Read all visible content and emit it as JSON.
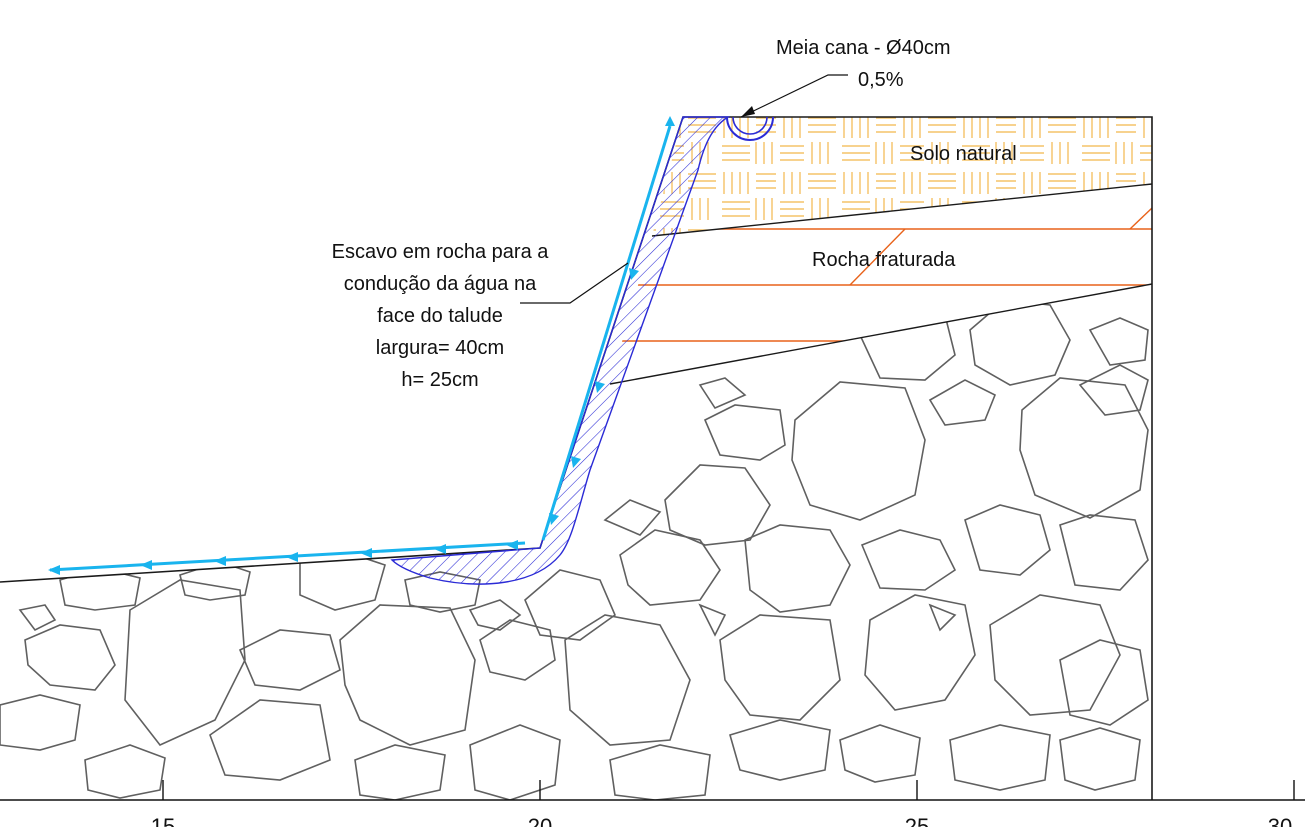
{
  "labels": {
    "drain_title": "Meia cana - Ø40cm",
    "drain_slope": "0,5%",
    "layer_soil": "Solo natural",
    "layer_fractured": "Rocha fraturada",
    "excavation_lines": [
      "Escavo em rocha para a",
      "condução da água na",
      "face do talude",
      "largura= 40cm",
      "h= 25cm"
    ]
  },
  "axis": {
    "ticks": [
      "15",
      "20",
      "25",
      "30"
    ]
  },
  "colors": {
    "outline": "#1a1a1a",
    "soil_hatch": "#f2b84b",
    "fracture_lines": "#e8621a",
    "rock_blocks": "#606060",
    "excavation_hatch": "#2b2bd6",
    "flow_arrows": "#19b4ee"
  }
}
